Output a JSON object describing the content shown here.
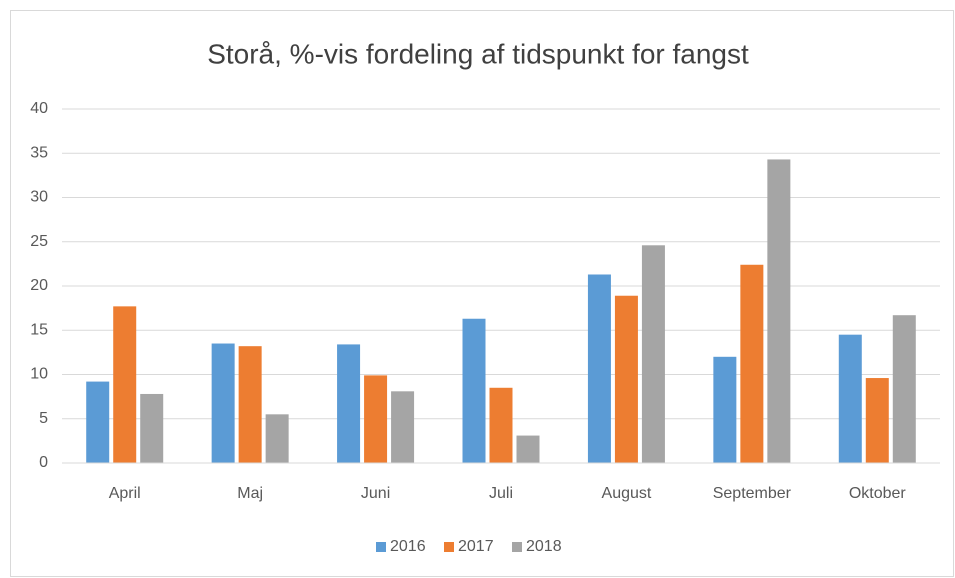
{
  "chart_data": {
    "type": "bar",
    "title": "Storå, %-vis fordeling af tidspunkt for fangst",
    "categories": [
      "April",
      "Maj",
      "Juni",
      "Juli",
      "August",
      "September",
      "Oktober"
    ],
    "series": [
      {
        "name": "2016",
        "color": "#5b9bd5",
        "values": [
          9.2,
          13.5,
          13.4,
          16.3,
          21.3,
          12.0,
          14.5
        ]
      },
      {
        "name": "2017",
        "color": "#ed7d31",
        "values": [
          17.7,
          13.2,
          9.9,
          8.5,
          18.9,
          22.4,
          9.6
        ]
      },
      {
        "name": "2018",
        "color": "#a5a5a5",
        "values": [
          7.8,
          5.5,
          8.1,
          3.1,
          24.6,
          34.3,
          16.7
        ]
      }
    ],
    "ylim": [
      0,
      40
    ],
    "yticks": [
      0,
      5,
      10,
      15,
      20,
      25,
      30,
      35,
      40
    ],
    "grid": true,
    "legend": "bottom"
  }
}
